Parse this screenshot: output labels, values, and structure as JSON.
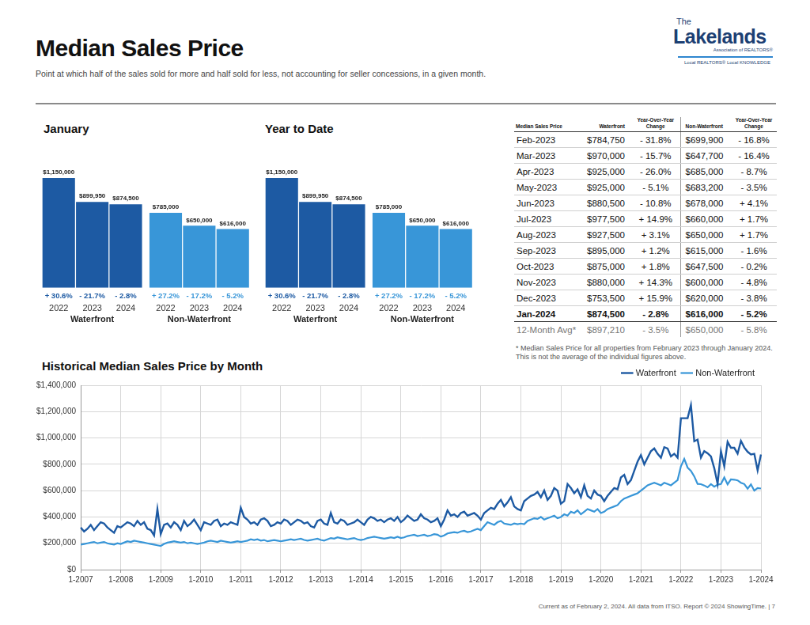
{
  "header": {
    "title": "Median Sales Price",
    "subtitle": "Point at which half of the sales sold for more and half sold for less, not accounting for seller concessions, in a given month.",
    "logo": {
      "small": "The",
      "name": "Lakelands",
      "sub": "Association of REALTORS®",
      "tagline": "Local REALTORS® Local KNOWLEDGE"
    }
  },
  "chart_data": [
    {
      "type": "bar",
      "title": "January",
      "categories": [
        "2022",
        "2023",
        "2024"
      ],
      "series": [
        {
          "name": "Waterfront",
          "color": "#1d5aa3",
          "values": [
            1150000,
            899950,
            874500
          ],
          "value_labels": [
            "$1,150,000",
            "$899,950",
            "$874,500"
          ],
          "change_labels": [
            "+ 30.6%",
            "- 21.7%",
            "- 2.8%"
          ]
        },
        {
          "name": "Non-Waterfront",
          "color": "#3896d8",
          "values": [
            785000,
            650000,
            616000
          ],
          "value_labels": [
            "$785,000",
            "$650,000",
            "$616,000"
          ],
          "change_labels": [
            "+ 27.2%",
            "- 17.2%",
            "- 5.2%"
          ]
        }
      ],
      "ylim": [
        0,
        1150000
      ],
      "grid": false,
      "data_labels": true,
      "tick_labels": "x"
    },
    {
      "type": "bar",
      "title": "Year to Date",
      "categories": [
        "2022",
        "2023",
        "2024"
      ],
      "series": [
        {
          "name": "Waterfront",
          "color": "#1d5aa3",
          "values": [
            1150000,
            899950,
            874500
          ],
          "value_labels": [
            "$1,150,000",
            "$899,950",
            "$874,500"
          ],
          "change_labels": [
            "+ 30.6%",
            "- 21.7%",
            "- 2.8%"
          ]
        },
        {
          "name": "Non-Waterfront",
          "color": "#3896d8",
          "values": [
            785000,
            650000,
            616000
          ],
          "value_labels": [
            "$785,000",
            "$650,000",
            "$616,000"
          ],
          "change_labels": [
            "+ 27.2%",
            "- 17.2%",
            "- 5.2%"
          ]
        }
      ],
      "ylim": [
        0,
        1150000
      ],
      "grid": false,
      "data_labels": true,
      "tick_labels": "x"
    },
    {
      "type": "line",
      "title": "Historical Median Sales Price by Month",
      "categories": [
        "1-2007",
        null,
        null,
        null,
        null,
        null,
        null,
        null,
        null,
        null,
        null,
        null,
        "1-2008",
        null,
        null,
        null,
        null,
        null,
        null,
        null,
        null,
        null,
        null,
        null,
        "1-2009",
        null,
        null,
        null,
        null,
        null,
        null,
        null,
        null,
        null,
        null,
        null,
        "1-2010",
        null,
        null,
        null,
        null,
        null,
        null,
        null,
        null,
        null,
        null,
        null,
        "1-2011",
        null,
        null,
        null,
        null,
        null,
        null,
        null,
        null,
        null,
        null,
        null,
        "1-2012",
        null,
        null,
        null,
        null,
        null,
        null,
        null,
        null,
        null,
        null,
        null,
        "1-2013",
        null,
        null,
        null,
        null,
        null,
        null,
        null,
        null,
        null,
        null,
        null,
        "1-2014",
        null,
        null,
        null,
        null,
        null,
        null,
        null,
        null,
        null,
        null,
        null,
        "1-2015",
        null,
        null,
        null,
        null,
        null,
        null,
        null,
        null,
        null,
        null,
        null,
        "1-2016",
        null,
        null,
        null,
        null,
        null,
        null,
        null,
        null,
        null,
        null,
        null,
        "1-2017",
        null,
        null,
        null,
        null,
        null,
        null,
        null,
        null,
        null,
        null,
        null,
        "1-2018",
        null,
        null,
        null,
        null,
        null,
        null,
        null,
        null,
        null,
        null,
        null,
        "1-2019",
        null,
        null,
        null,
        null,
        null,
        null,
        null,
        null,
        null,
        null,
        null,
        "1-2020",
        null,
        null,
        null,
        null,
        null,
        null,
        null,
        null,
        null,
        null,
        null,
        "1-2021",
        null,
        null,
        null,
        null,
        null,
        null,
        null,
        null,
        null,
        null,
        null,
        "1-2022",
        null,
        null,
        null,
        null,
        null,
        null,
        null,
        null,
        null,
        null,
        null,
        "1-2023",
        null,
        null,
        null,
        null,
        null,
        null,
        null,
        null,
        null,
        null,
        null,
        "1-2024"
      ],
      "series": [
        {
          "name": "Waterfront",
          "color": "#1d5aa3",
          "values": [
            320000,
            290000,
            310000,
            340000,
            300000,
            330000,
            360000,
            350000,
            320000,
            300000,
            280000,
            330000,
            320000,
            340000,
            360000,
            350000,
            330000,
            370000,
            340000,
            360000,
            310000,
            300000,
            260000,
            460000,
            270000,
            340000,
            350000,
            320000,
            360000,
            340000,
            300000,
            370000,
            330000,
            350000,
            380000,
            340000,
            300000,
            360000,
            350000,
            340000,
            370000,
            380000,
            330000,
            350000,
            340000,
            360000,
            350000,
            340000,
            470000,
            400000,
            380000,
            350000,
            360000,
            340000,
            380000,
            390000,
            370000,
            330000,
            340000,
            360000,
            350000,
            380000,
            370000,
            340000,
            360000,
            380000,
            370000,
            350000,
            360000,
            330000,
            320000,
            370000,
            380000,
            350000,
            340000,
            430000,
            360000,
            350000,
            380000,
            370000,
            340000,
            350000,
            360000,
            380000,
            360000,
            340000,
            380000,
            400000,
            390000,
            370000,
            380000,
            360000,
            380000,
            390000,
            370000,
            400000,
            360000,
            380000,
            410000,
            390000,
            370000,
            380000,
            420000,
            390000,
            380000,
            360000,
            370000,
            390000,
            330000,
            380000,
            450000,
            410000,
            420000,
            400000,
            430000,
            440000,
            410000,
            420000,
            430000,
            410000,
            380000,
            430000,
            450000,
            470000,
            460000,
            500000,
            530000,
            480000,
            510000,
            550000,
            480000,
            460000,
            450000,
            520000,
            540000,
            560000,
            570000,
            590000,
            550000,
            600000,
            530000,
            560000,
            620000,
            600000,
            500000,
            520000,
            650000,
            620000,
            580000,
            610000,
            550000,
            640000,
            560000,
            540000,
            600000,
            570000,
            560000,
            520000,
            560000,
            590000,
            620000,
            610000,
            700000,
            720000,
            650000,
            680000,
            750000,
            820000,
            870000,
            800000,
            850000,
            900000,
            920000,
            880000,
            850000,
            930000,
            920000,
            860000,
            880000,
            850000,
            1150000,
            1150000,
            1150000,
            1250000,
            975000,
            987000,
            851000,
            900000,
            884000,
            860000,
            770000,
            650000,
            899950,
            784750,
            970000,
            925000,
            925000,
            880500,
            977500,
            927500,
            895000,
            875000,
            880000,
            753500,
            874500
          ]
        },
        {
          "name": "Non-Waterfront",
          "color": "#3896d8",
          "values": [
            190000,
            195000,
            200000,
            205000,
            210000,
            200000,
            205000,
            210000,
            200000,
            195000,
            190000,
            200000,
            195000,
            205000,
            215000,
            210000,
            220000,
            215000,
            210000,
            205000,
            200000,
            195000,
            190000,
            185000,
            180000,
            195000,
            205000,
            210000,
            215000,
            210000,
            205000,
            210000,
            200000,
            205000,
            200000,
            195000,
            200000,
            205000,
            215000,
            220000,
            215000,
            210000,
            220000,
            215000,
            210000,
            205000,
            210000,
            215000,
            210000,
            215000,
            220000,
            230000,
            225000,
            230000,
            220000,
            225000,
            215000,
            220000,
            225000,
            220000,
            215000,
            220000,
            225000,
            230000,
            225000,
            230000,
            235000,
            225000,
            220000,
            225000,
            230000,
            235000,
            225000,
            220000,
            230000,
            240000,
            235000,
            245000,
            240000,
            235000,
            230000,
            235000,
            240000,
            230000,
            225000,
            230000,
            240000,
            245000,
            250000,
            245000,
            240000,
            235000,
            240000,
            245000,
            240000,
            250000,
            240000,
            245000,
            255000,
            260000,
            265000,
            255000,
            260000,
            265000,
            255000,
            260000,
            270000,
            265000,
            250000,
            260000,
            275000,
            280000,
            285000,
            280000,
            290000,
            295000,
            285000,
            290000,
            300000,
            310000,
            300000,
            330000,
            360000,
            350000,
            340000,
            360000,
            370000,
            350000,
            345000,
            340000,
            350000,
            345000,
            350000,
            345000,
            370000,
            380000,
            390000,
            385000,
            400000,
            380000,
            390000,
            400000,
            410000,
            390000,
            400000,
            420000,
            410000,
            440000,
            430000,
            450000,
            420000,
            440000,
            460000,
            450000,
            440000,
            460000,
            430000,
            440000,
            460000,
            470000,
            480000,
            490000,
            520000,
            540000,
            550000,
            560000,
            570000,
            580000,
            600000,
            620000,
            640000,
            650000,
            660000,
            650000,
            640000,
            660000,
            650000,
            640000,
            660000,
            680000,
            785000,
            841000,
            775000,
            750000,
            708000,
            651000,
            649000,
            639000,
            625000,
            649000,
            630000,
            645000,
            650000,
            699900,
            647700,
            685000,
            683200,
            678000,
            660000,
            650000,
            615000,
            647500,
            600000,
            620000,
            616000
          ]
        }
      ],
      "ylim": [
        0,
        1400000
      ],
      "yticks": [
        {
          "value": 0,
          "label": "$0"
        },
        {
          "value": 200000,
          "label": "$200,000"
        },
        {
          "value": 400000,
          "label": "$400,000"
        },
        {
          "value": 600000,
          "label": "$600,000"
        },
        {
          "value": 800000,
          "label": "$800,000"
        },
        {
          "value": 1000000,
          "label": "$1,000,000"
        },
        {
          "value": 1200000,
          "label": "$1,200,000"
        },
        {
          "value": 1400000,
          "label": "$1,400,000"
        }
      ],
      "grid": true,
      "legend": "top-right"
    }
  ],
  "table": {
    "header": [
      "Median Sales Price",
      "Waterfront",
      "Year-Over-Year Change",
      "Non-Waterfront",
      "Year-Over-Year Change"
    ],
    "rows": [
      [
        "Feb-2023",
        "$784,750",
        "- 31.8%",
        "$699,900",
        "- 16.8%"
      ],
      [
        "Mar-2023",
        "$970,000",
        "- 15.7%",
        "$647,700",
        "- 16.4%"
      ],
      [
        "Apr-2023",
        "$925,000",
        "- 26.0%",
        "$685,000",
        "- 8.7%"
      ],
      [
        "May-2023",
        "$925,000",
        "- 5.1%",
        "$683,200",
        "- 3.5%"
      ],
      [
        "Jun-2023",
        "$880,500",
        "- 10.8%",
        "$678,000",
        "+ 4.1%"
      ],
      [
        "Jul-2023",
        "$977,500",
        "+ 14.9%",
        "$660,000",
        "+ 1.7%"
      ],
      [
        "Aug-2023",
        "$927,500",
        "+ 3.1%",
        "$650,000",
        "+ 1.7%"
      ],
      [
        "Sep-2023",
        "$895,000",
        "+ 1.2%",
        "$615,000",
        "- 1.6%"
      ],
      [
        "Oct-2023",
        "$875,000",
        "+ 1.8%",
        "$647,500",
        "- 0.2%"
      ],
      [
        "Nov-2023",
        "$880,000",
        "+ 14.3%",
        "$600,000",
        "- 4.8%"
      ],
      [
        "Dec-2023",
        "$753,500",
        "+ 15.9%",
        "$620,000",
        "- 3.8%"
      ],
      [
        "Jan-2024",
        "$874,500",
        "- 2.8%",
        "$616,000",
        "- 5.2%"
      ]
    ],
    "summary_row": [
      "12-Month Avg*",
      "$897,210",
      "- 3.5%",
      "$650,000",
      "- 5.8%"
    ],
    "note": "* Median Sales Price for all properties from February 2023 through January 2024. This is not the average of the individual figures above."
  },
  "footer": "Current as of February 2, 2024. All data from ITSO. Report © 2024 ShowingTime. | 7"
}
